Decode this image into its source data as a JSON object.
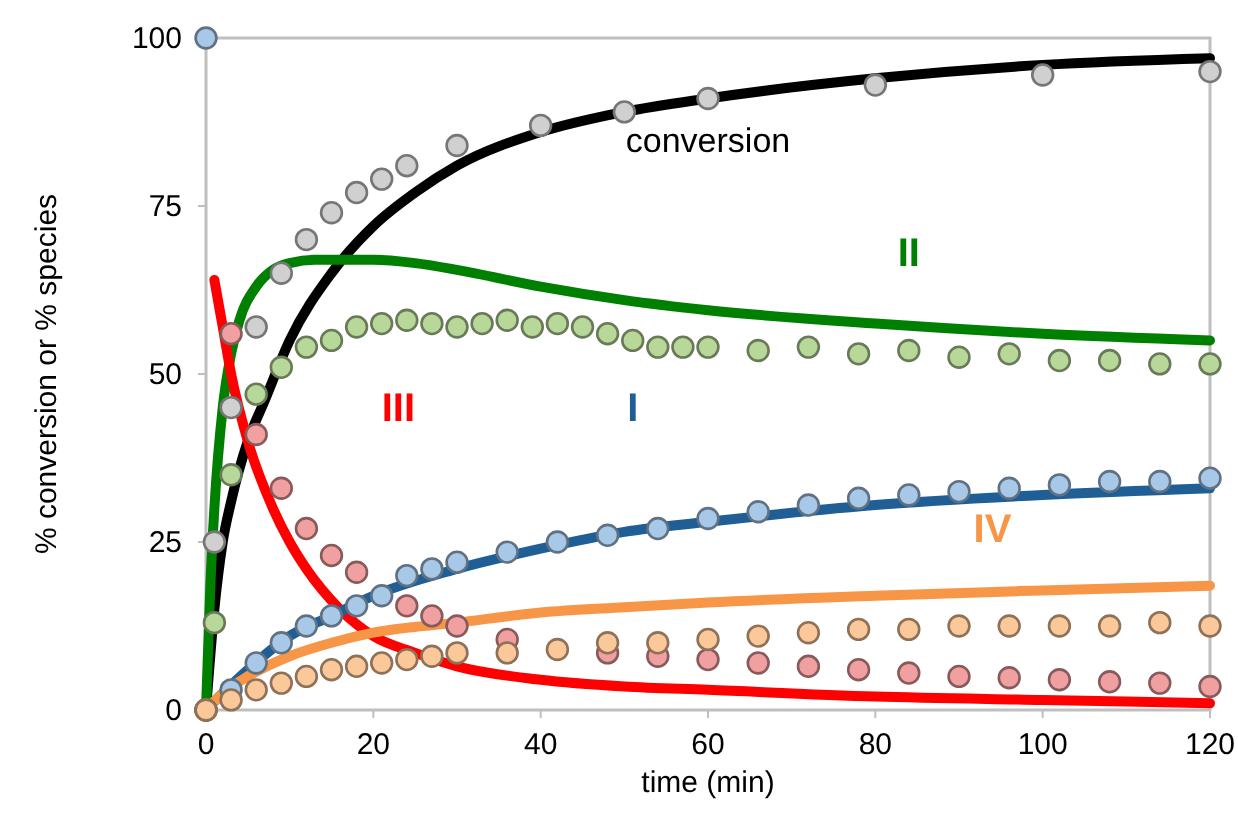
{
  "chart_data": {
    "type": "scatter",
    "xlabel": "time (min)",
    "ylabel": "% conversion or % species",
    "xlim": [
      0,
      120
    ],
    "ylim": [
      0,
      100
    ],
    "xticks": [
      0,
      20,
      40,
      60,
      80,
      100,
      120
    ],
    "yticks": [
      0,
      25,
      50,
      75,
      100
    ],
    "grid": false,
    "marker": "circle",
    "series": [
      {
        "color": "#d0d0d0",
        "x": [
          0,
          1,
          3,
          6,
          9,
          12,
          15,
          18,
          21,
          24,
          30,
          40,
          50,
          60,
          80,
          100,
          120
        ],
        "values": [
          0,
          25,
          45,
          57,
          65,
          70,
          74,
          77,
          79,
          81,
          84,
          87,
          89,
          91,
          93,
          94.5,
          95
        ]
      },
      {
        "color": "#b8d89a",
        "x": [
          0,
          1,
          3,
          6,
          9,
          12,
          15,
          18,
          21,
          24,
          27,
          30,
          33,
          36,
          39,
          42,
          45,
          48,
          51,
          54,
          57,
          60,
          66,
          72,
          78,
          84,
          90,
          96,
          102,
          108,
          114,
          120
        ],
        "values": [
          0,
          13,
          35,
          47,
          51,
          54,
          55,
          57,
          57.5,
          58,
          57.5,
          57,
          57.5,
          58,
          57,
          57.5,
          57,
          56,
          55,
          54,
          54,
          54,
          53.5,
          54,
          53,
          53.5,
          52.5,
          53,
          52,
          52,
          51.5,
          51.5
        ]
      },
      {
        "color": "#f0a0a0",
        "x": [
          0,
          3,
          6,
          9,
          12,
          15,
          18,
          24,
          27,
          30,
          36,
          48,
          54,
          60,
          66,
          72,
          78,
          84,
          90,
          96,
          102,
          108,
          114,
          120
        ],
        "values": [
          0,
          56,
          41,
          33,
          27,
          23,
          20.5,
          15.5,
          14,
          12.5,
          10.5,
          8.5,
          8,
          7.5,
          7,
          6.5,
          6,
          5.5,
          5,
          4.8,
          4.5,
          4.2,
          4,
          3.5
        ]
      },
      {
        "color": "#a8c8e8",
        "x": [
          0,
          3,
          6,
          9,
          12,
          15,
          18,
          21,
          24,
          27,
          30,
          36,
          42,
          48,
          54,
          60,
          66,
          72,
          78,
          84,
          90,
          96,
          102,
          108,
          114,
          120
        ],
        "values": [
          100,
          3,
          7,
          10,
          12.5,
          14,
          15.5,
          17,
          20,
          21,
          22,
          23.5,
          25,
          26,
          27,
          28.5,
          29.5,
          30.5,
          31.5,
          32,
          32.5,
          33,
          33.5,
          34,
          34,
          34.5
        ]
      },
      {
        "color": "#fbc89a",
        "x": [
          0,
          3,
          6,
          9,
          12,
          15,
          18,
          21,
          24,
          27,
          30,
          36,
          42,
          48,
          54,
          60,
          66,
          72,
          78,
          84,
          90,
          96,
          102,
          108,
          114,
          120
        ],
        "values": [
          0,
          1.5,
          3,
          4,
          5,
          6,
          6.5,
          7,
          7.5,
          8,
          8.5,
          8.5,
          9,
          10,
          10,
          10.5,
          11,
          11.5,
          12,
          12,
          12.5,
          12.5,
          12.5,
          12.5,
          13,
          12.5
        ]
      },
      {
        "type": "line",
        "marker": "none",
        "name": "conversion",
        "color": "#000000",
        "x": [
          0,
          1,
          2,
          3,
          5,
          7,
          10,
          15,
          20,
          25,
          30,
          40,
          50,
          60,
          80,
          100,
          120
        ],
        "values": [
          0,
          15,
          25,
          31,
          40,
          46,
          55,
          65,
          72,
          77,
          81,
          86,
          89,
          91,
          94,
          96,
          97
        ]
      },
      {
        "type": "line",
        "marker": "none",
        "name": "II",
        "color": "#008000",
        "x": [
          0,
          0.5,
          1,
          2,
          3,
          4,
          6,
          8,
          10,
          13,
          16,
          20,
          25,
          30,
          40,
          50,
          60,
          80,
          100,
          120
        ],
        "values": [
          0,
          18,
          30,
          45,
          53,
          58,
          63,
          65.5,
          66.5,
          67,
          67,
          67,
          66.5,
          65.5,
          63,
          61,
          59.5,
          57.5,
          56,
          55
        ]
      },
      {
        "type": "line",
        "marker": "none",
        "name": "III",
        "color": "#ff0000",
        "x": [
          1,
          2,
          3,
          5,
          8,
          10,
          12,
          16,
          20,
          25,
          30,
          40,
          50,
          60,
          80,
          100,
          120
        ],
        "values": [
          64,
          57,
          50,
          40,
          30,
          25,
          21,
          15,
          11,
          8.5,
          6.5,
          4.5,
          3.5,
          3,
          2,
          1.5,
          1
        ]
      },
      {
        "type": "line",
        "marker": "none",
        "name": "I",
        "color": "#1f5f96",
        "x": [
          0,
          2,
          5,
          10,
          15,
          20,
          30,
          40,
          50,
          60,
          80,
          100,
          120
        ],
        "values": [
          0,
          2.5,
          6,
          11,
          14,
          17,
          21,
          24,
          26.5,
          28,
          30.5,
          32,
          33
        ]
      },
      {
        "type": "line",
        "marker": "none",
        "name": "IV",
        "color": "#f79646",
        "x": [
          0,
          2,
          5,
          10,
          15,
          20,
          30,
          40,
          50,
          60,
          80,
          100,
          120
        ],
        "values": [
          0,
          2.5,
          5,
          8,
          10,
          11.5,
          13,
          14.5,
          15.3,
          16,
          17,
          17.8,
          18.5
        ]
      }
    ]
  }
}
